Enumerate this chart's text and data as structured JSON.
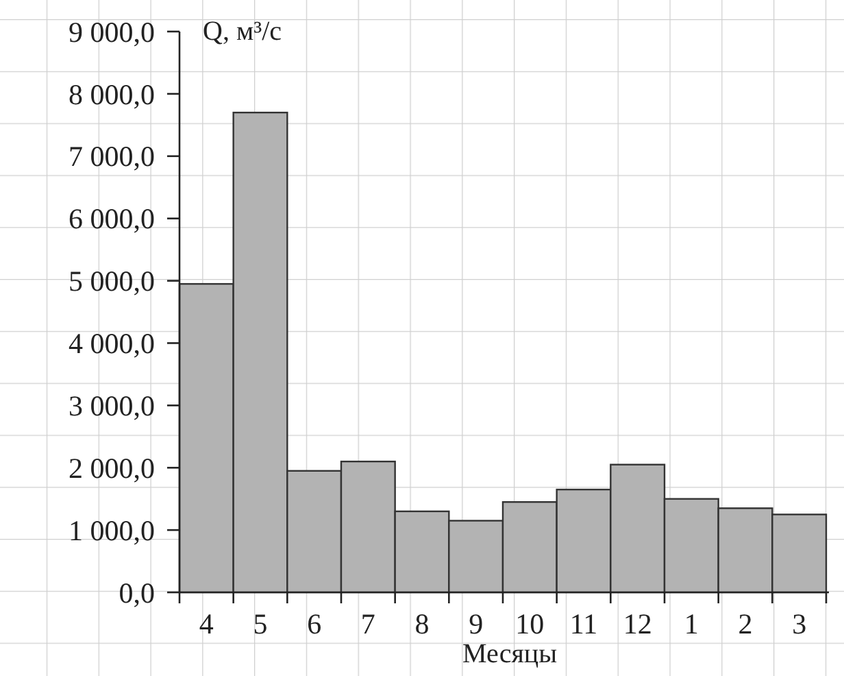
{
  "chart_data": {
    "type": "bar",
    "ylabel": "Q, м³/с",
    "xlabel": "Месяцы",
    "categories": [
      "4",
      "5",
      "6",
      "7",
      "8",
      "9",
      "10",
      "11",
      "12",
      "1",
      "2",
      "3"
    ],
    "values": [
      4950,
      7700,
      1950,
      2100,
      1300,
      1150,
      1450,
      1650,
      2050,
      1500,
      1350,
      1250
    ],
    "color": "#b3b3b3",
    "ylim": [
      0,
      9000
    ],
    "yticks": [
      {
        "value": 0,
        "label": "0,0"
      },
      {
        "value": 1000,
        "label": "1 000,0"
      },
      {
        "value": 2000,
        "label": "2 000,0"
      },
      {
        "value": 3000,
        "label": "3 000,0"
      },
      {
        "value": 4000,
        "label": "4 000,0"
      },
      {
        "value": 5000,
        "label": "5 000,0"
      },
      {
        "value": 6000,
        "label": "6 000,0"
      },
      {
        "value": 7000,
        "label": "7 000,0"
      },
      {
        "value": 8000,
        "label": "8 000,0"
      },
      {
        "value": 9000,
        "label": "9 000,0"
      }
    ],
    "grid": false
  }
}
